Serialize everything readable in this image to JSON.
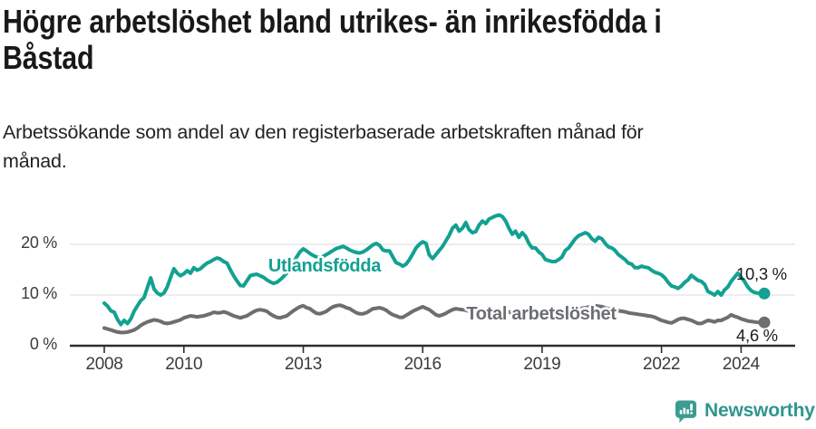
{
  "header": {
    "title": "Högre arbetslöshet bland utrikes- än inrikesfödda i\nBåstad",
    "subtitle": "Arbetssökande som andel av den registerbaserade arbetskraften månad för\nmånad."
  },
  "chart_data": {
    "type": "line",
    "title": "Högre arbetslöshet bland utrikes- än inrikesfödda i Båstad",
    "subtitle": "Arbetssökande som andel av den registerbaserade arbetskraften månad för månad.",
    "unit": "%",
    "x_unit": "month",
    "x_start_year": 2008,
    "x_start": "2008-01",
    "x_end": "2024-08",
    "ylim": [
      0,
      27
    ],
    "grid": "horizontal",
    "legend_position": "inline-labels",
    "yticks": [
      {
        "value": 0,
        "label": "0 %"
      },
      {
        "value": 10,
        "label": "10 %"
      },
      {
        "value": 20,
        "label": "20 %"
      }
    ],
    "xticks": [
      {
        "year": 2008,
        "label": "2008"
      },
      {
        "year": 2010,
        "label": "2010"
      },
      {
        "year": 2013,
        "label": "2013"
      },
      {
        "year": 2016,
        "label": "2016"
      },
      {
        "year": 2019,
        "label": "2019"
      },
      {
        "year": 2022,
        "label": "2022"
      },
      {
        "year": 2024,
        "label": "2024"
      }
    ],
    "series": [
      {
        "name": "Utlandsfödda",
        "color": "#12A192",
        "end_value": 10.3,
        "end_label": "10,3 %",
        "values": [
          8.4,
          7.8,
          6.9,
          6.6,
          5.2,
          4.2,
          5.0,
          4.4,
          5.3,
          6.8,
          7.9,
          8.9,
          9.5,
          11.5,
          13.4,
          11.2,
          10.4,
          10.0,
          10.4,
          11.6,
          13.5,
          15.2,
          14.3,
          13.8,
          14.2,
          14.8,
          14.3,
          15.4,
          14.9,
          15.2,
          15.8,
          16.3,
          16.6,
          17.0,
          17.3,
          17.1,
          16.6,
          16.3,
          15.0,
          13.8,
          12.8,
          11.9,
          11.8,
          12.8,
          13.8,
          14.0,
          14.1,
          13.8,
          13.5,
          13.0,
          12.6,
          12.3,
          12.5,
          13.0,
          13.6,
          14.3,
          15.2,
          16.3,
          17.5,
          18.5,
          19.1,
          18.7,
          18.2,
          17.8,
          17.5,
          17.3,
          17.6,
          18.0,
          18.4,
          18.8,
          19.2,
          19.4,
          19.6,
          19.3,
          18.9,
          18.6,
          18.4,
          18.3,
          18.5,
          18.9,
          19.4,
          19.9,
          20.2,
          19.8,
          18.9,
          18.7,
          18.7,
          17.5,
          16.4,
          16.1,
          15.7,
          16.1,
          17.0,
          18.1,
          19.3,
          20.0,
          20.5,
          20.2,
          17.9,
          17.2,
          18.0,
          18.8,
          19.6,
          20.7,
          21.8,
          23.2,
          23.8,
          22.6,
          23.2,
          24.3,
          22.9,
          22.3,
          22.5,
          23.8,
          24.6,
          24.1,
          25.0,
          25.3,
          25.6,
          25.8,
          25.5,
          24.6,
          23.2,
          22.0,
          22.6,
          21.4,
          22.3,
          21.6,
          20.2,
          19.3,
          19.3,
          18.5,
          18.0,
          17.0,
          16.8,
          16.6,
          16.6,
          17.0,
          17.5,
          18.8,
          19.3,
          20.2,
          21.1,
          21.7,
          22.0,
          22.3,
          22.0,
          21.1,
          20.6,
          21.4,
          21.1,
          20.2,
          19.5,
          19.3,
          18.8,
          18.0,
          17.5,
          17.0,
          16.3,
          16.1,
          15.4,
          15.4,
          15.7,
          15.5,
          15.4,
          14.9,
          14.5,
          14.3,
          14.0,
          13.4,
          12.5,
          11.8,
          11.6,
          11.3,
          11.8,
          12.5,
          13.0,
          13.9,
          13.4,
          12.9,
          12.7,
          12.1,
          10.7,
          10.4,
          10.0,
          10.7,
          10.0,
          11.0,
          11.6,
          12.7,
          13.5,
          14.3,
          13.5,
          12.7,
          11.6,
          10.9,
          10.5,
          10.4,
          10.2,
          10.3
        ]
      },
      {
        "name": "Total arbetslöshet",
        "color": "#6E6E6E",
        "end_value": 4.6,
        "end_label": "4,6 %",
        "values": [
          3.5,
          3.3,
          3.1,
          2.9,
          2.7,
          2.6,
          2.6,
          2.7,
          2.9,
          3.1,
          3.5,
          4.0,
          4.4,
          4.7,
          4.9,
          5.1,
          5.0,
          4.8,
          4.5,
          4.4,
          4.5,
          4.7,
          4.9,
          5.1,
          5.5,
          5.7,
          5.9,
          5.8,
          5.7,
          5.8,
          5.9,
          6.1,
          6.3,
          6.6,
          6.5,
          6.5,
          6.7,
          6.5,
          6.2,
          5.9,
          5.7,
          5.5,
          5.7,
          5.9,
          6.3,
          6.7,
          7.0,
          7.1,
          7.0,
          6.8,
          6.3,
          5.9,
          5.6,
          5.5,
          5.7,
          5.9,
          6.4,
          6.9,
          7.3,
          7.7,
          7.9,
          7.5,
          7.3,
          6.8,
          6.4,
          6.3,
          6.5,
          6.8,
          7.3,
          7.7,
          7.9,
          8.0,
          7.8,
          7.5,
          7.3,
          6.9,
          6.5,
          6.3,
          6.3,
          6.5,
          6.9,
          7.3,
          7.4,
          7.5,
          7.3,
          7.0,
          6.5,
          6.1,
          5.9,
          5.6,
          5.6,
          6.0,
          6.4,
          6.8,
          7.1,
          7.4,
          7.7,
          7.4,
          7.1,
          6.6,
          6.1,
          5.9,
          6.1,
          6.4,
          6.8,
          7.1,
          7.3,
          7.2,
          7.1,
          7.0,
          6.8,
          6.6,
          6.4,
          6.4,
          6.5,
          6.7,
          6.9,
          7.0,
          7.1,
          7.2,
          7.1,
          6.9,
          6.7,
          6.4,
          6.3,
          6.2,
          6.3,
          6.4,
          6.5,
          6.6,
          6.7,
          6.8,
          6.7,
          6.5,
          6.4,
          6.3,
          6.3,
          6.4,
          6.5,
          6.6,
          6.8,
          7.0,
          7.2,
          7.3,
          7.4,
          7.5,
          7.6,
          7.8,
          7.9,
          7.8,
          7.7,
          7.5,
          7.3,
          7.1,
          7.0,
          6.9,
          6.8,
          6.7,
          6.5,
          6.4,
          6.3,
          6.2,
          6.1,
          6.0,
          5.9,
          5.8,
          5.6,
          5.3,
          5.0,
          4.8,
          4.6,
          4.5,
          4.8,
          5.2,
          5.4,
          5.4,
          5.2,
          5.0,
          4.7,
          4.4,
          4.4,
          4.7,
          5.0,
          4.9,
          4.7,
          5.0,
          5.0,
          5.3,
          5.6,
          6.1,
          5.8,
          5.6,
          5.3,
          5.1,
          4.9,
          4.8,
          4.7,
          4.6,
          4.6,
          4.6
        ]
      }
    ],
    "colors": {
      "axis": "#2E2E2E",
      "gridline": "#E2E2E2",
      "tick_text": "#3B3B3B",
      "value_label_text": "#1C1C1C"
    }
  },
  "footer": {
    "brand": "Newsworthy",
    "logo_icon": "newsworthy-speech-bubble-bar-chart-icon",
    "logo_color": "#3B9C94",
    "text_color": "#2F968E"
  }
}
